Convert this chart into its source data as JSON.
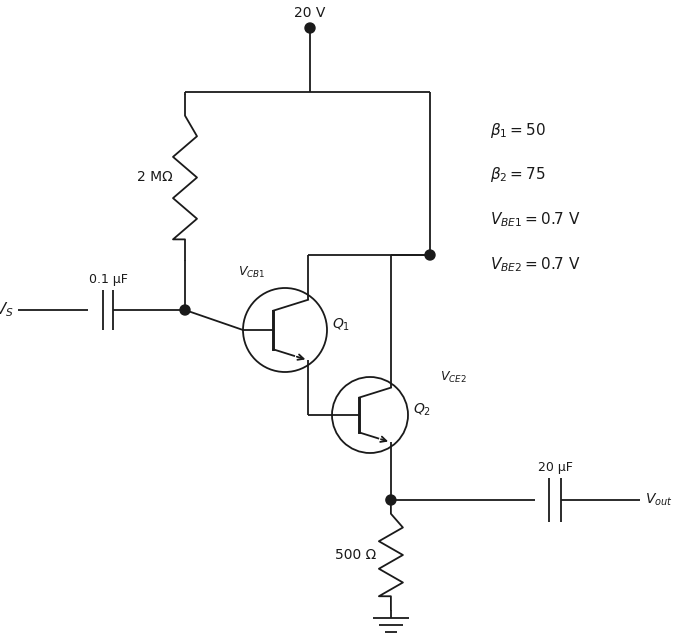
{
  "bg_color": "#ffffff",
  "line_color": "#1a1a1a",
  "line_width": 1.3,
  "vcc_label": "20 V",
  "vs_label": "$V_S$",
  "cap1_label": "0.1 μF",
  "res1_label": "2 MΩ",
  "vcb1_label": "$V_{CB1}$",
  "q1_label": "$Q_1$",
  "q2_label": "$Q_2$",
  "vce2_label": "$V_{CE2}$",
  "res2_label": "500 Ω",
  "cap2_label": "20 μF",
  "vout_label": "$V_{out}$",
  "beta1_label": "$\\beta_1 = 50$",
  "beta2_label": "$\\beta_2 = 75$",
  "vbe1_label": "$V_{BE1} = 0.7$ V",
  "vbe2_label": "$V_{BE2} = 0.7$ V",
  "figsize": [
    7.0,
    6.41
  ],
  "dpi": 100
}
